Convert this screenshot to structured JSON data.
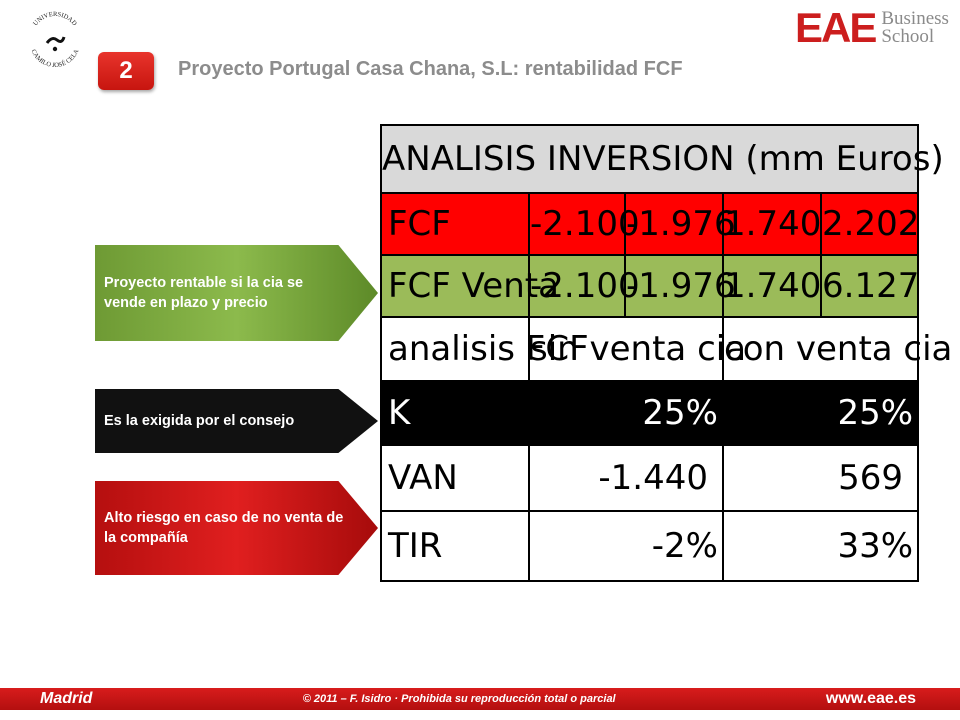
{
  "header": {
    "university_logo_text_top": "UNIVERSIDAD",
    "university_logo_text_bottom": "CAMILO JOSÉ CELA",
    "brand_mark": "EAE",
    "brand_text_line1": "Business",
    "brand_text_line2": "School",
    "section_number": "2",
    "title": "Proyecto Portugal Casa Chana, S.L: rentabilidad FCF"
  },
  "callouts": [
    {
      "text": "Proyecto rentable si la cia se vende en plazo y precio",
      "color": "#8cba4c"
    },
    {
      "text": "Es la exigida por el consejo",
      "color": "#111111"
    },
    {
      "text": "Alto riesgo en caso de no venta de la compañía",
      "color": "#e01f1f"
    }
  ],
  "table": {
    "title": "ANALISIS INVERSION (mm Euros)",
    "fcf_row": {
      "label": "FCF",
      "values": [
        "-2.100",
        "-1.976",
        "1.740",
        "2.202"
      ]
    },
    "fcf_venta_row": {
      "label": "FCF Venta",
      "values": [
        "-2.100",
        "-1.976",
        "1.740",
        "6.127"
      ]
    },
    "header_row": {
      "label": "analisis FCF",
      "col1": "sin venta cia",
      "col2": "con venta cia"
    },
    "k_row": {
      "label": "K",
      "col1": "25%",
      "col2": "25%"
    },
    "van_row": {
      "label": "VAN",
      "col1": "-1.440",
      "col2": "569"
    },
    "tir_row": {
      "label": "TIR",
      "col1": "-2%",
      "col2": "33%"
    }
  },
  "footer": {
    "city": "Madrid",
    "copyright": "© 2011 – F. Isidro · Prohibida su reproducción total o parcial",
    "website": "www.eae.es"
  },
  "colors": {
    "brand_red": "#cc1e1e",
    "table_red": "#ff0000",
    "table_green": "#9bbb59",
    "table_grey": "#d9d9d9"
  }
}
